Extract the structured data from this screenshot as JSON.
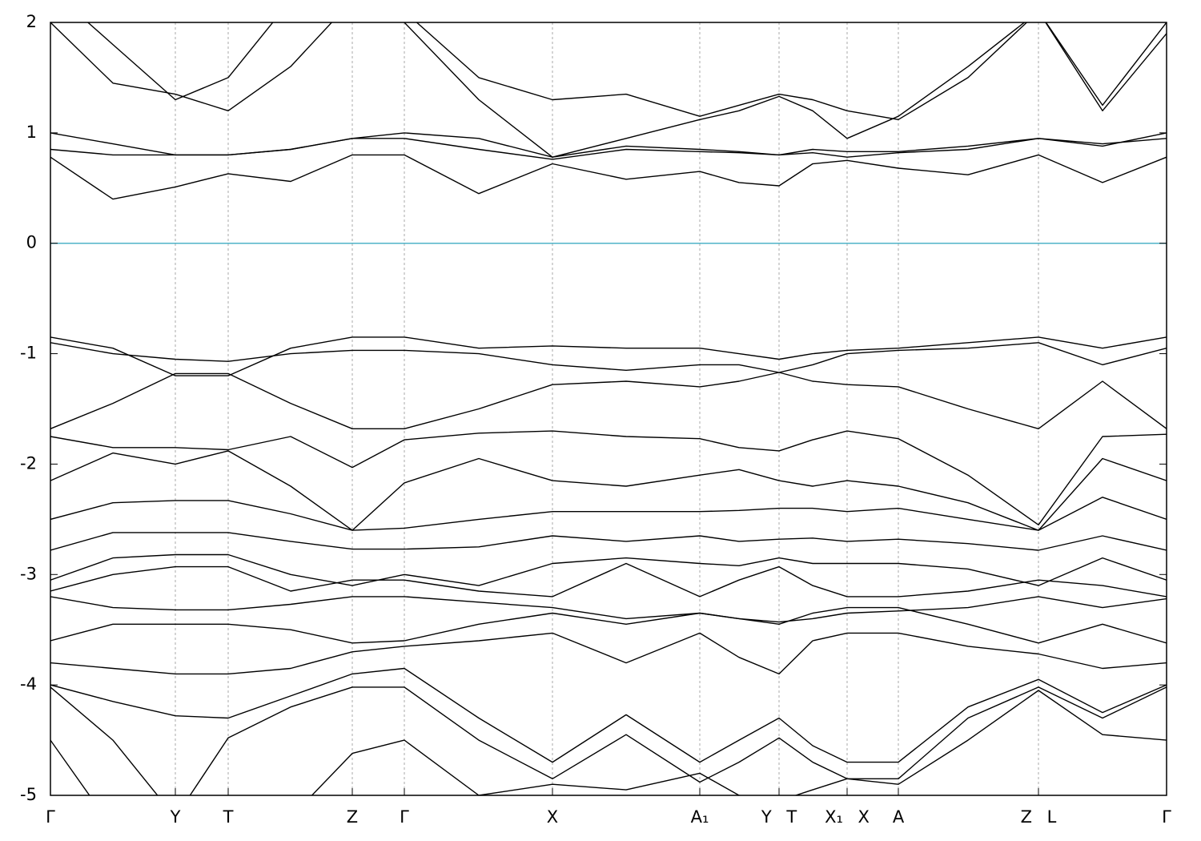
{
  "chart_data": {
    "type": "line",
    "xlim": [
      0,
      1394
    ],
    "ylim": [
      -5,
      2
    ],
    "yticks": [
      -5,
      -4,
      -3,
      -2,
      -1,
      0,
      1,
      2
    ],
    "xticks": [
      {
        "value": 0,
        "label": "Γ"
      },
      {
        "value": 156,
        "label": "Y"
      },
      {
        "value": 222,
        "label": "T"
      },
      {
        "value": 377,
        "label": "Z"
      },
      {
        "value": 442,
        "label": "Γ"
      },
      {
        "value": 627,
        "label": "X"
      },
      {
        "value": 811,
        "label": "A₁"
      },
      {
        "value": 910,
        "label": "Y T"
      },
      {
        "value": 995,
        "label": "X₁ X"
      },
      {
        "value": 1059,
        "label": "A"
      },
      {
        "value": 1234,
        "label": "Z L"
      },
      {
        "value": 1394,
        "label": "Γ"
      }
    ],
    "grid": true,
    "grid_color": "#aaaaaa",
    "hlines": [
      {
        "y": 0,
        "color": "#4fb3c8"
      }
    ],
    "x": [
      0,
      78,
      156,
      222,
      300,
      377,
      442,
      535,
      627,
      719,
      811,
      860,
      910,
      952,
      995,
      1059,
      1146,
      1234,
      1314,
      1394
    ],
    "series": [
      {
        "color": "#000000",
        "values": [
          0.78,
          0.4,
          0.51,
          0.63,
          0.56,
          0.8,
          0.8,
          0.45,
          0.72,
          0.58,
          0.65,
          0.55,
          0.52,
          0.72,
          0.75,
          0.68,
          0.62,
          0.8,
          0.55,
          0.78
        ]
      },
      {
        "color": "#000000",
        "values": [
          0.85,
          0.8,
          0.8,
          0.8,
          0.85,
          0.95,
          0.95,
          0.85,
          0.76,
          0.85,
          0.83,
          0.82,
          0.8,
          0.85,
          0.83,
          0.83,
          0.88,
          0.95,
          0.9,
          0.95
        ]
      },
      {
        "color": "#000000",
        "values": [
          1.0,
          0.9,
          0.8,
          0.8,
          0.85,
          0.95,
          1.0,
          0.95,
          0.78,
          0.88,
          0.85,
          0.83,
          0.8,
          0.82,
          0.78,
          0.82,
          0.85,
          0.95,
          0.88,
          1.0
        ]
      },
      {
        "color": "#000000",
        "values": [
          2.0,
          1.45,
          1.35,
          1.2,
          1.6,
          2.2,
          2.1,
          1.5,
          1.3,
          1.35,
          1.15,
          1.25,
          1.35,
          1.3,
          1.2,
          1.12,
          1.5,
          2.1,
          1.2,
          1.9
        ]
      },
      {
        "color": "#000000",
        "values": [
          2.3,
          1.8,
          1.3,
          1.5,
          2.2,
          2.6,
          2.0,
          1.3,
          0.78,
          0.95,
          1.12,
          1.2,
          1.33,
          1.2,
          0.95,
          1.15,
          1.6,
          2.1,
          1.25,
          2.0
        ]
      },
      {
        "color": "#000000",
        "values": [
          -0.85,
          -0.95,
          -1.2,
          -1.2,
          -0.95,
          -0.85,
          -0.85,
          -0.95,
          -0.93,
          -0.95,
          -0.95,
          -1.0,
          -1.05,
          -1.0,
          -0.97,
          -0.95,
          -0.9,
          -0.85,
          -0.95,
          -0.85
        ]
      },
      {
        "color": "#000000",
        "values": [
          -0.9,
          -1.0,
          -1.05,
          -1.07,
          -1.0,
          -0.97,
          -0.97,
          -1.0,
          -1.1,
          -1.15,
          -1.1,
          -1.1,
          -1.17,
          -1.1,
          -1.0,
          -0.97,
          -0.95,
          -0.9,
          -1.1,
          -0.95
        ]
      },
      {
        "color": "#000000",
        "values": [
          -1.68,
          -1.45,
          -1.18,
          -1.18,
          -1.45,
          -1.68,
          -1.68,
          -1.5,
          -1.28,
          -1.25,
          -1.3,
          -1.25,
          -1.17,
          -1.25,
          -1.28,
          -1.3,
          -1.5,
          -1.68,
          -1.25,
          -1.68
        ]
      },
      {
        "color": "#000000",
        "values": [
          -1.75,
          -1.85,
          -1.85,
          -1.87,
          -1.75,
          -2.03,
          -1.78,
          -1.72,
          -1.7,
          -1.75,
          -1.77,
          -1.85,
          -1.88,
          -1.78,
          -1.7,
          -1.77,
          -2.1,
          -2.55,
          -1.75,
          -1.73
        ]
      },
      {
        "color": "#000000",
        "values": [
          -2.15,
          -1.9,
          -2.0,
          -1.88,
          -2.2,
          -2.6,
          -2.17,
          -1.95,
          -2.15,
          -2.2,
          -2.1,
          -2.05,
          -2.15,
          -2.2,
          -2.15,
          -2.2,
          -2.35,
          -2.6,
          -1.95,
          -2.15
        ]
      },
      {
        "color": "#000000",
        "values": [
          -2.5,
          -2.35,
          -2.33,
          -2.33,
          -2.45,
          -2.6,
          -2.58,
          -2.5,
          -2.43,
          -2.43,
          -2.43,
          -2.42,
          -2.4,
          -2.4,
          -2.43,
          -2.4,
          -2.5,
          -2.6,
          -2.3,
          -2.5
        ]
      },
      {
        "color": "#000000",
        "values": [
          -2.78,
          -2.62,
          -2.62,
          -2.62,
          -2.7,
          -2.77,
          -2.77,
          -2.75,
          -2.65,
          -2.7,
          -2.65,
          -2.7,
          -2.68,
          -2.67,
          -2.7,
          -2.68,
          -2.72,
          -2.78,
          -2.65,
          -2.78
        ]
      },
      {
        "color": "#000000",
        "values": [
          -3.05,
          -2.85,
          -2.82,
          -2.82,
          -3.0,
          -3.1,
          -3.0,
          -3.1,
          -2.9,
          -2.85,
          -2.9,
          -2.92,
          -2.85,
          -2.9,
          -2.9,
          -2.9,
          -2.95,
          -3.1,
          -2.85,
          -3.05
        ]
      },
      {
        "color": "#000000",
        "values": [
          -3.15,
          -3.0,
          -2.93,
          -2.93,
          -3.15,
          -3.05,
          -3.05,
          -3.15,
          -3.2,
          -2.9,
          -3.2,
          -3.05,
          -2.93,
          -3.1,
          -3.2,
          -3.2,
          -3.15,
          -3.05,
          -3.1,
          -3.2
        ]
      },
      {
        "color": "#000000",
        "values": [
          -3.2,
          -3.3,
          -3.32,
          -3.32,
          -3.27,
          -3.2,
          -3.2,
          -3.25,
          -3.3,
          -3.4,
          -3.35,
          -3.4,
          -3.43,
          -3.4,
          -3.35,
          -3.33,
          -3.3,
          -3.2,
          -3.3,
          -3.22
        ]
      },
      {
        "color": "#000000",
        "values": [
          -3.6,
          -3.45,
          -3.45,
          -3.45,
          -3.5,
          -3.62,
          -3.6,
          -3.45,
          -3.35,
          -3.45,
          -3.35,
          -3.4,
          -3.45,
          -3.35,
          -3.3,
          -3.3,
          -3.45,
          -3.62,
          -3.45,
          -3.62
        ]
      },
      {
        "color": "#000000",
        "values": [
          -3.8,
          -3.85,
          -3.9,
          -3.9,
          -3.85,
          -3.7,
          -3.65,
          -3.6,
          -3.53,
          -3.8,
          -3.53,
          -3.75,
          -3.9,
          -3.6,
          -3.53,
          -3.53,
          -3.65,
          -3.72,
          -3.85,
          -3.8
        ]
      },
      {
        "color": "#000000",
        "values": [
          -4.0,
          -4.15,
          -4.28,
          -4.3,
          -4.1,
          -3.9,
          -3.85,
          -4.3,
          -4.7,
          -4.27,
          -4.7,
          -4.5,
          -4.3,
          -4.55,
          -4.7,
          -4.7,
          -4.2,
          -3.95,
          -4.25,
          -4.0
        ]
      },
      {
        "color": "#000000",
        "values": [
          -4.02,
          -4.5,
          -5.2,
          -4.48,
          -4.2,
          -4.02,
          -4.02,
          -4.5,
          -4.85,
          -4.45,
          -4.88,
          -4.7,
          -4.48,
          -4.7,
          -4.85,
          -4.85,
          -4.3,
          -4.02,
          -4.3,
          -4.02
        ]
      },
      {
        "color": "#000000",
        "values": [
          -4.5,
          -5.3,
          -5.6,
          -5.5,
          -5.2,
          -4.62,
          -4.5,
          -5.0,
          -4.9,
          -4.95,
          -4.8,
          -5.0,
          -5.05,
          -4.95,
          -4.85,
          -4.9,
          -4.5,
          -4.05,
          -4.45,
          -4.5
        ]
      }
    ]
  }
}
